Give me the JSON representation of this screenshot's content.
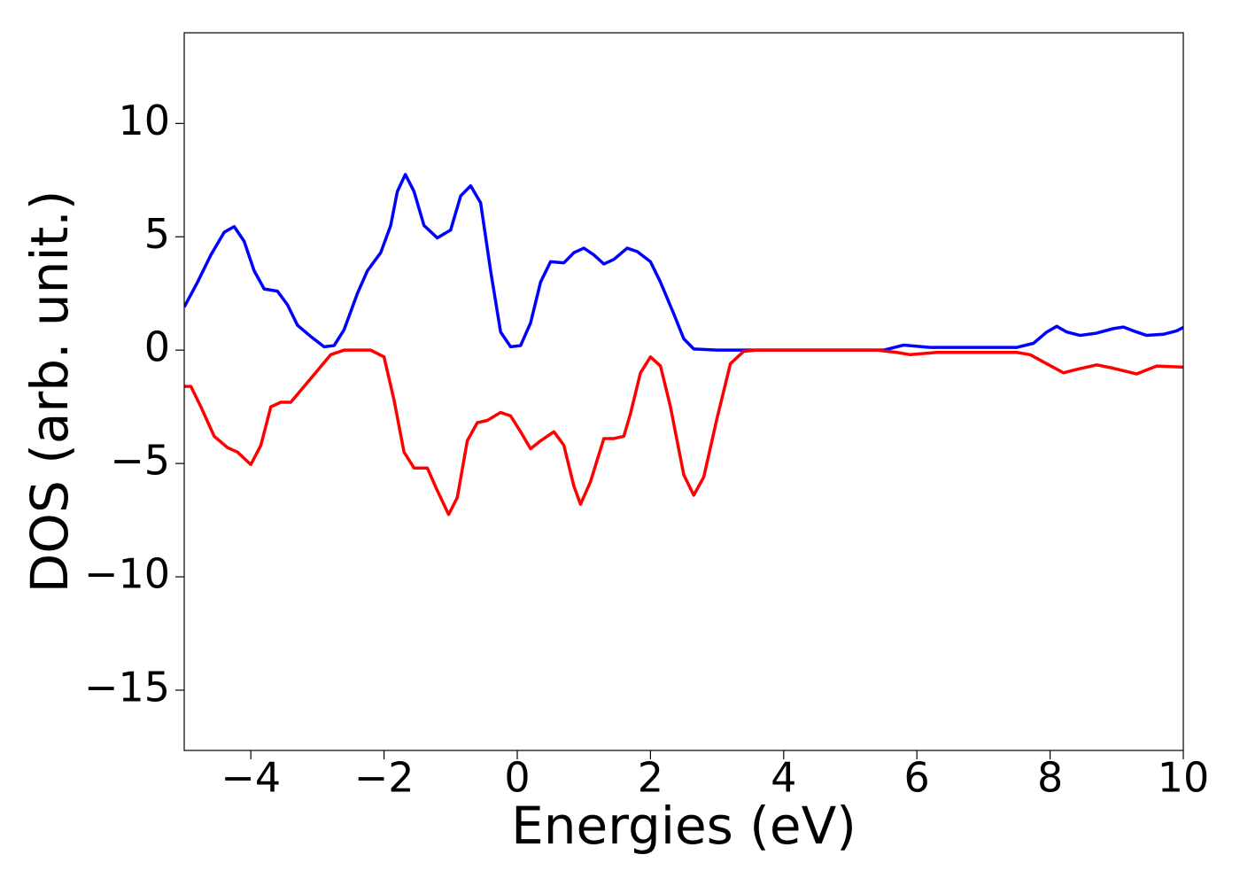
{
  "chart_data": {
    "type": "line",
    "xlabel": "Energies (eV)",
    "ylabel": "DOS (arb. unit.)",
    "xlim": [
      -5,
      10
    ],
    "ylim": [
      -17.66,
      14
    ],
    "xticks": [
      {
        "value": -4,
        "label": "−4"
      },
      {
        "value": -2,
        "label": "−2"
      },
      0,
      2,
      4,
      6,
      8,
      10
    ],
    "yticks": [
      {
        "value": -15,
        "label": "−15"
      },
      {
        "value": -10,
        "label": "−10"
      },
      {
        "value": -5,
        "label": "−5"
      },
      0,
      5,
      10
    ],
    "grid": false,
    "series": [
      {
        "color": "#0000ff",
        "x": [
          -5,
          -4.8,
          -4.6,
          -4.4,
          -4.25,
          -4.1,
          -3.95,
          -3.8,
          -3.6,
          -3.45,
          -3.3,
          -3.1,
          -2.9,
          -2.75,
          -2.6,
          -2.4,
          -2.25,
          -2.05,
          -1.9,
          -1.8,
          -1.68,
          -1.55,
          -1.4,
          -1.2,
          -1.0,
          -0.85,
          -0.7,
          -0.55,
          -0.4,
          -0.25,
          -0.1,
          0.05,
          0.2,
          0.35,
          0.5,
          0.7,
          0.85,
          1.0,
          1.15,
          1.3,
          1.45,
          1.65,
          1.8,
          2.0,
          2.15,
          2.35,
          2.5,
          2.65,
          3.0,
          5.5,
          5.8,
          6.2,
          7.5,
          7.75,
          7.95,
          8.1,
          8.25,
          8.45,
          8.7,
          8.95,
          9.1,
          9.25,
          9.45,
          9.7,
          9.9,
          10
        ],
        "values": [
          1.9,
          3.0,
          4.2,
          5.2,
          5.45,
          4.8,
          3.5,
          2.7,
          2.6,
          2.0,
          1.1,
          0.6,
          0.15,
          0.2,
          0.9,
          2.5,
          3.5,
          4.3,
          5.5,
          7.0,
          7.75,
          7.0,
          5.5,
          4.95,
          5.3,
          6.8,
          7.25,
          6.5,
          3.5,
          0.8,
          0.15,
          0.2,
          1.2,
          3.0,
          3.9,
          3.85,
          4.3,
          4.5,
          4.2,
          3.8,
          4.0,
          4.5,
          4.35,
          3.9,
          3.0,
          1.6,
          0.5,
          0.05,
          0.0,
          0.0,
          0.22,
          0.12,
          0.12,
          0.3,
          0.8,
          1.05,
          0.8,
          0.65,
          0.75,
          0.95,
          1.02,
          0.85,
          0.65,
          0.7,
          0.85,
          1.0
        ]
      },
      {
        "color": "#ff0000",
        "x": [
          -5,
          -4.9,
          -4.75,
          -4.55,
          -4.35,
          -4.2,
          -4.0,
          -3.85,
          -3.7,
          -3.55,
          -3.4,
          -3.2,
          -3.0,
          -2.8,
          -2.6,
          -2.2,
          -2.0,
          -1.85,
          -1.7,
          -1.55,
          -1.35,
          -1.2,
          -1.03,
          -0.9,
          -0.75,
          -0.6,
          -0.45,
          -0.25,
          -0.1,
          0.05,
          0.2,
          0.35,
          0.55,
          0.7,
          0.85,
          0.95,
          1.1,
          1.3,
          1.45,
          1.6,
          1.7,
          1.85,
          2.0,
          2.15,
          2.3,
          2.5,
          2.65,
          2.8,
          3.0,
          3.2,
          3.4,
          3.6,
          5.4,
          5.7,
          5.9,
          6.3,
          7.5,
          7.7,
          7.95,
          8.2,
          8.4,
          8.7,
          8.95,
          9.3,
          9.6,
          10
        ],
        "values": [
          -1.6,
          -1.6,
          -2.5,
          -3.8,
          -4.3,
          -4.5,
          -5.05,
          -4.2,
          -2.5,
          -2.3,
          -2.3,
          -1.6,
          -0.9,
          -0.2,
          0.0,
          0.0,
          -0.3,
          -2.2,
          -4.5,
          -5.2,
          -5.2,
          -6.2,
          -7.25,
          -6.5,
          -4.0,
          -3.2,
          -3.1,
          -2.75,
          -2.9,
          -3.6,
          -4.35,
          -4.0,
          -3.6,
          -4.2,
          -6.0,
          -6.8,
          -5.8,
          -3.9,
          -3.9,
          -3.8,
          -2.8,
          -1.0,
          -0.3,
          -0.7,
          -2.5,
          -5.5,
          -6.4,
          -5.6,
          -3.0,
          -0.6,
          -0.05,
          0.0,
          0.0,
          -0.1,
          -0.2,
          -0.1,
          -0.1,
          -0.2,
          -0.6,
          -1.0,
          -0.85,
          -0.65,
          -0.8,
          -1.05,
          -0.7,
          -0.75
        ]
      }
    ]
  }
}
